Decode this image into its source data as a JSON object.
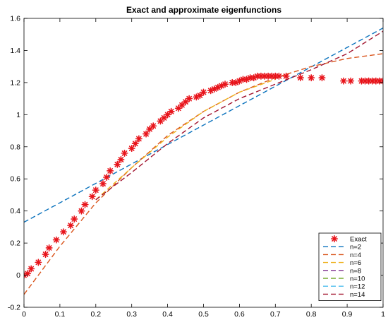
{
  "colors": {
    "exact": "#e8141b",
    "n2": "#0a72bd",
    "n4": "#d9531a",
    "n6": "#eeb11e",
    "n8": "#7e2f8e",
    "n10": "#77ac30",
    "n12": "#4dbeee",
    "n14": "#a2142f",
    "axis": "#000000"
  },
  "chart_data": {
    "type": "line",
    "title": "Exact and approximate eigenfunctions",
    "xlabel": "",
    "ylabel": "",
    "xlim": [
      0,
      1
    ],
    "ylim": [
      -0.2,
      1.6
    ],
    "xticks": [
      0,
      0.1,
      0.2,
      0.3,
      0.4,
      0.5,
      0.6,
      0.7,
      0.8,
      0.9,
      1
    ],
    "yticks": [
      -0.2,
      0,
      0.2,
      0.4,
      0.6,
      0.8,
      1,
      1.2,
      1.4,
      1.6
    ],
    "xtick_labels": [
      "0",
      "0.1",
      "0.2",
      "0.3",
      "0.4",
      "0.5",
      "0.6",
      "0.7",
      "0.8",
      "0.9",
      "1"
    ],
    "ytick_labels": [
      "-0.2",
      "0",
      "0.2",
      "0.4",
      "0.6",
      "0.8",
      "1",
      "1.2",
      "1.4",
      "1.6"
    ],
    "grid": false,
    "legend_position": "bottom-right",
    "series": [
      {
        "name": "Exact",
        "style": "markers",
        "marker": "asterisk",
        "color_key": "exact",
        "x": [
          0,
          0.01,
          0.02,
          0.04,
          0.06,
          0.07,
          0.09,
          0.11,
          0.13,
          0.14,
          0.16,
          0.17,
          0.19,
          0.2,
          0.22,
          0.23,
          0.24,
          0.26,
          0.27,
          0.28,
          0.3,
          0.31,
          0.32,
          0.34,
          0.35,
          0.36,
          0.38,
          0.39,
          0.4,
          0.41,
          0.43,
          0.44,
          0.45,
          0.46,
          0.48,
          0.49,
          0.5,
          0.52,
          0.53,
          0.54,
          0.55,
          0.56,
          0.58,
          0.59,
          0.6,
          0.61,
          0.62,
          0.63,
          0.64,
          0.65,
          0.66,
          0.67,
          0.68,
          0.69,
          0.7,
          0.71,
          0.73,
          0.77,
          0.8,
          0.83,
          0.89,
          0.91,
          0.94,
          0.95,
          0.96,
          0.97,
          0.98,
          0.99,
          1
        ],
        "y": [
          0.0,
          0.01,
          0.04,
          0.08,
          0.13,
          0.17,
          0.22,
          0.27,
          0.31,
          0.35,
          0.4,
          0.44,
          0.49,
          0.53,
          0.57,
          0.61,
          0.65,
          0.69,
          0.72,
          0.76,
          0.79,
          0.82,
          0.85,
          0.88,
          0.91,
          0.93,
          0.96,
          0.98,
          1.0,
          1.02,
          1.04,
          1.06,
          1.08,
          1.1,
          1.11,
          1.12,
          1.14,
          1.15,
          1.16,
          1.17,
          1.18,
          1.19,
          1.2,
          1.2,
          1.21,
          1.22,
          1.22,
          1.23,
          1.23,
          1.24,
          1.24,
          1.24,
          1.24,
          1.24,
          1.24,
          1.24,
          1.24,
          1.23,
          1.23,
          1.23,
          1.21,
          1.21,
          1.21,
          1.21,
          1.21,
          1.21,
          1.21,
          1.21,
          1.21
        ]
      },
      {
        "name": "n=2",
        "style": "dashed",
        "color_key": "n2",
        "x": [
          0,
          1
        ],
        "y": [
          0.33,
          1.54
        ]
      },
      {
        "name": "n=4",
        "style": "dashed",
        "color_key": "n4",
        "x": [
          0,
          0.1,
          0.2,
          0.3,
          0.4,
          0.5,
          0.6,
          0.7,
          0.8,
          0.9,
          1
        ],
        "y": [
          -0.12,
          0.18,
          0.45,
          0.67,
          0.87,
          1.02,
          1.14,
          1.23,
          1.3,
          1.35,
          1.38
        ]
      },
      {
        "name": "n=6",
        "style": "dashed",
        "color_key": "n6",
        "x": [
          0.2,
          0.3,
          0.4,
          0.5,
          0.6,
          0.7
        ],
        "y": [
          0.47,
          0.67,
          0.86,
          1.02,
          1.14,
          1.22
        ]
      },
      {
        "name": "n=8",
        "style": "dashed",
        "color_key": "n8",
        "x": [],
        "y": []
      },
      {
        "name": "n=10",
        "style": "dashed",
        "color_key": "n10",
        "x": [],
        "y": []
      },
      {
        "name": "n=12",
        "style": "dashed",
        "color_key": "n12",
        "x": [],
        "y": []
      },
      {
        "name": "n=14",
        "style": "dashed",
        "color_key": "n14",
        "x": [
          0.2,
          0.3,
          0.4,
          0.5,
          0.6,
          0.7,
          0.8,
          0.9,
          1
        ],
        "y": [
          0.47,
          0.64,
          0.82,
          0.98,
          1.1,
          1.19,
          1.28,
          1.38,
          1.52
        ]
      }
    ]
  }
}
